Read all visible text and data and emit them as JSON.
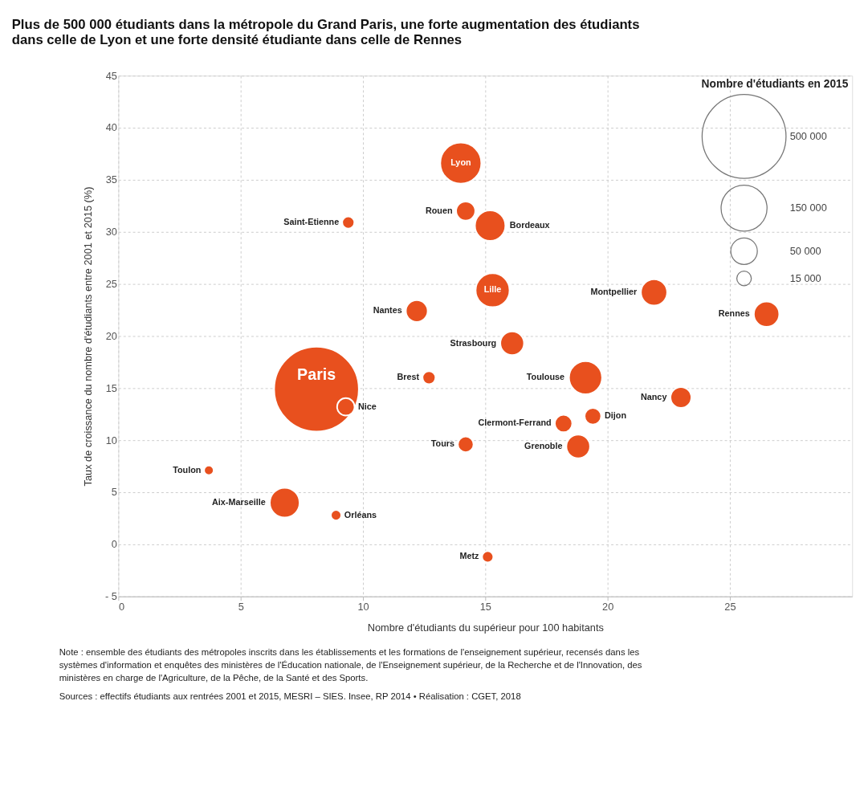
{
  "chart_data": {
    "type": "bubble",
    "title": "Plus de 500 000 étudiants dans la métropole du Grand Paris, une forte augmentation des étudiants dans celle de Lyon et une forte densité étudiante dans celle de Rennes",
    "xlabel": "Nombre d'étudiants du supérieur pour 100 habitants",
    "ylabel": "Taux de croissance du nombre d'étudiants entre 2001 et 2015 (%)",
    "legend_title": "Nombre d'étudiants en 2015",
    "xlim": [
      0,
      30
    ],
    "xticks": [
      0,
      5,
      10,
      15,
      20,
      25
    ],
    "ylim": [
      -5,
      45
    ],
    "yticks": [
      {
        "value": -5,
        "label": "- 5"
      },
      0,
      5,
      10,
      15,
      20,
      25,
      30,
      35,
      40,
      45
    ],
    "grid": true,
    "size_legend": [
      15000,
      50000,
      150000,
      500000
    ],
    "series": [
      {
        "name": "Paris",
        "color": "#e8501e",
        "x": [
          8.1
        ],
        "values": [
          14.9
        ],
        "sizes": [
          510000
        ]
      },
      {
        "name": "Lyon",
        "color": "#e8501e",
        "x": [
          14.0
        ],
        "values": [
          36.6
        ],
        "sizes": [
          120000
        ]
      },
      {
        "name": "Bordeaux",
        "color": "#e8501e",
        "x": [
          15.2
        ],
        "values": [
          30.6
        ],
        "sizes": [
          66000
        ]
      },
      {
        "name": "Lille",
        "color": "#e8501e",
        "x": [
          15.3
        ],
        "values": [
          24.4
        ],
        "sizes": [
          82000
        ]
      },
      {
        "name": "Toulouse",
        "color": "#e8501e",
        "x": [
          19.1
        ],
        "values": [
          16.0
        ],
        "sizes": [
          78000
        ]
      },
      {
        "name": "Aix-Marseille",
        "color": "#e8501e",
        "x": [
          6.8
        ],
        "values": [
          4.0
        ],
        "sizes": [
          63000
        ]
      },
      {
        "name": "Montpellier",
        "color": "#e8501e",
        "x": [
          21.9
        ],
        "values": [
          24.2
        ],
        "sizes": [
          49000
        ]
      },
      {
        "name": "Rennes",
        "color": "#e8501e",
        "x": [
          26.5
        ],
        "values": [
          22.1
        ],
        "sizes": [
          46000
        ]
      },
      {
        "name": "Strasbourg",
        "color": "#e8501e",
        "x": [
          16.1
        ],
        "values": [
          19.3
        ],
        "sizes": [
          40000
        ]
      },
      {
        "name": "Grenoble",
        "color": "#e8501e",
        "x": [
          18.8
        ],
        "values": [
          9.4
        ],
        "sizes": [
          40000
        ]
      },
      {
        "name": "Nantes",
        "color": "#e8501e",
        "x": [
          12.2
        ],
        "values": [
          22.4
        ],
        "sizes": [
          34000
        ]
      },
      {
        "name": "Nancy",
        "color": "#e8501e",
        "x": [
          23.0
        ],
        "values": [
          14.1
        ],
        "sizes": [
          31000
        ]
      },
      {
        "name": "Rouen",
        "color": "#e8501e",
        "x": [
          14.2
        ],
        "values": [
          32.0
        ],
        "sizes": [
          26000
        ]
      },
      {
        "name": "Nice",
        "color": "#e8501e",
        "x": [
          9.3
        ],
        "values": [
          13.2
        ],
        "sizes": [
          21700
        ]
      },
      {
        "name": "Clermont-Ferrand",
        "color": "#e8501e",
        "x": [
          18.2
        ],
        "values": [
          11.6
        ],
        "sizes": [
          21700
        ]
      },
      {
        "name": "Dijon",
        "color": "#e8501e",
        "x": [
          19.4
        ],
        "values": [
          12.3
        ],
        "sizes": [
          19600
        ]
      },
      {
        "name": "Tours",
        "color": "#e8501e",
        "x": [
          14.2
        ],
        "values": [
          9.6
        ],
        "sizes": [
          17600
        ]
      },
      {
        "name": "Brest",
        "color": "#e8501e",
        "x": [
          12.7
        ],
        "values": [
          16.0
        ],
        "sizes": [
          12000
        ]
      },
      {
        "name": "Saint-Etienne",
        "color": "#e8501e",
        "x": [
          9.4
        ],
        "values": [
          30.9
        ],
        "sizes": [
          10600
        ]
      },
      {
        "name": "Metz",
        "color": "#e8501e",
        "x": [
          15.1
        ],
        "values": [
          -1.2
        ],
        "sizes": [
          9200
        ]
      },
      {
        "name": "Orléans",
        "color": "#e8501e",
        "x": [
          8.9
        ],
        "values": [
          2.8
        ],
        "sizes": [
          7800
        ]
      },
      {
        "name": "Toulon",
        "color": "#e8501e",
        "x": [
          3.7
        ],
        "values": [
          7.1
        ],
        "sizes": [
          6600
        ]
      }
    ],
    "annotations": [
      "Note : ensemble des étudiants des métropoles inscrits dans les établissements et les formations de l'enseignement supérieur, recensés dans les systèmes d'information et enquêtes des ministères de l'Éducation nationale, de l'Enseignement supérieur, de la Recherche et de l'Innovation, des ministères en charge de l'Agriculture, de la Pêche, de la Santé et des Sports.",
      "Sources : effectifs étudiants aux rentrées 2001 et 2015, MESRI – SIES. Insee, RP 2014 • Réalisation : CGET, 2018"
    ]
  }
}
